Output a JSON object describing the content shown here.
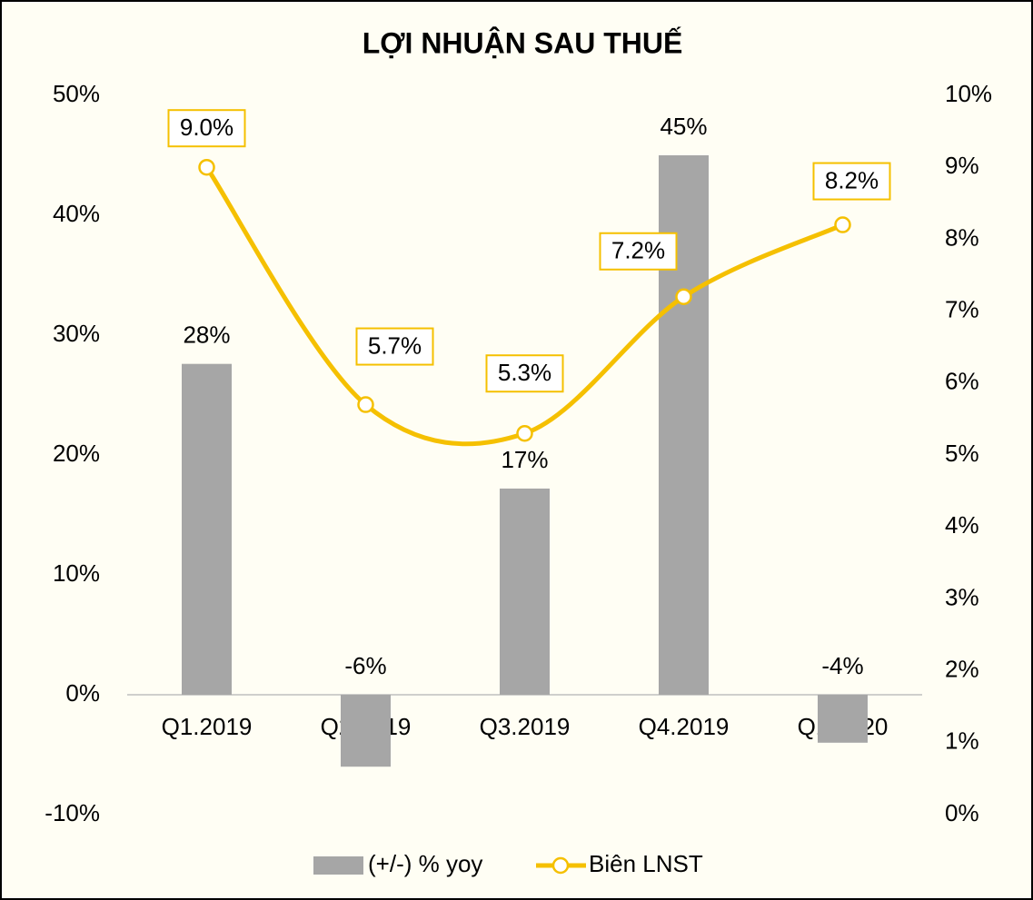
{
  "chart_data": {
    "type": "combo",
    "title": "LỢI NHUẬN SAU THUẾ",
    "categories": [
      "Q1.2019",
      "Q2.2019",
      "Q3.2019",
      "Q4.2019",
      "Q1.2020"
    ],
    "series": [
      {
        "name": "(+/-) % yoy",
        "type": "bar",
        "color": "#a6a6a6",
        "values": [
          27.6,
          -6,
          17.2,
          45,
          -4
        ],
        "value_labels": [
          "28%",
          "-6%",
          "17%",
          "45%",
          "-4%"
        ]
      },
      {
        "name": "Biên LNST",
        "type": "line",
        "axis": "y2",
        "color": "#f5c000",
        "values": [
          9.0,
          5.7,
          5.3,
          7.2,
          8.2
        ],
        "value_labels": [
          "9.0%",
          "5.7%",
          "5.3%",
          "7.2%",
          "8.2%"
        ]
      }
    ],
    "ylim": [
      -10,
      50
    ],
    "yticks": [
      {
        "value": -10,
        "label": "-10%"
      },
      {
        "value": 0,
        "label": "0%"
      },
      {
        "value": 10,
        "label": "10%"
      },
      {
        "value": 20,
        "label": "20%"
      },
      {
        "value": 30,
        "label": "30%"
      },
      {
        "value": 40,
        "label": "40%"
      },
      {
        "value": 50,
        "label": "50%"
      }
    ],
    "y2lim": [
      0,
      10
    ],
    "y2ticks": [
      {
        "value": 0,
        "label": "0%"
      },
      {
        "value": 1,
        "label": "1%"
      },
      {
        "value": 2,
        "label": "2%"
      },
      {
        "value": 3,
        "label": "3%"
      },
      {
        "value": 4,
        "label": "4%"
      },
      {
        "value": 5,
        "label": "5%"
      },
      {
        "value": 6,
        "label": "6%"
      },
      {
        "value": 7,
        "label": "7%"
      },
      {
        "value": 8,
        "label": "8%"
      },
      {
        "value": 9,
        "label": "9%"
      },
      {
        "value": 10,
        "label": "10%"
      }
    ],
    "legend": "bottom"
  }
}
